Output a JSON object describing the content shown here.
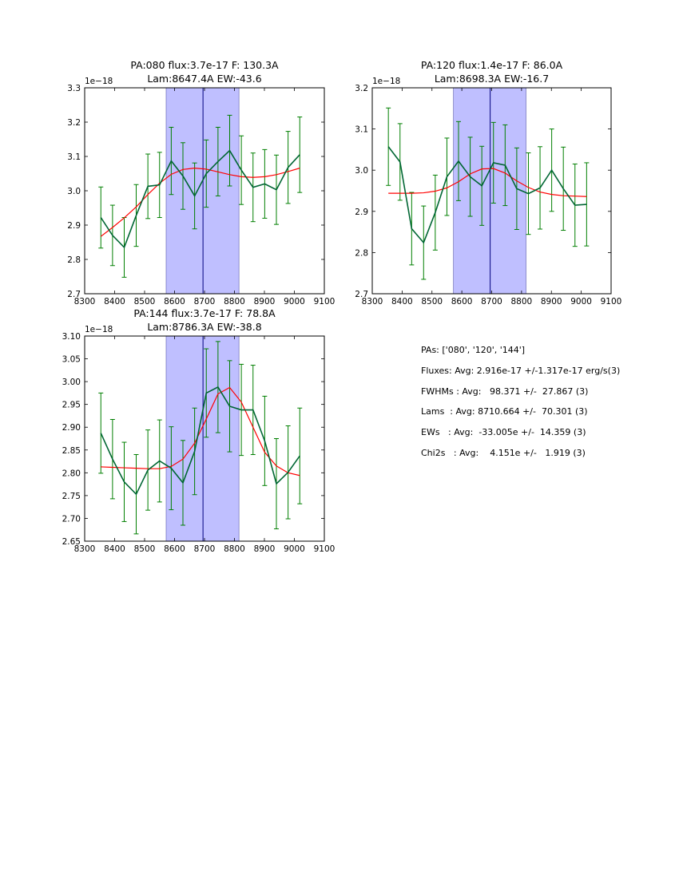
{
  "chart_data": [
    {
      "type": "line",
      "title": "PA:080 flux:3.7e-17 F: 130.3A",
      "subtitle": "Lam:8647.4A EW:-43.6",
      "xlim": [
        8300,
        9100
      ],
      "ylim": [
        2.7,
        3.3
      ],
      "xticks": [
        "8300",
        "8400",
        "8500",
        "8600",
        "8700",
        "8800",
        "8900",
        "9000",
        "9100"
      ],
      "yticks": [
        "2.7",
        "2.8",
        "2.9",
        "3.0",
        "3.1",
        "3.2",
        "3.3"
      ],
      "offset_label": "1e−18",
      "band": [
        8572,
        8815
      ],
      "center_line": 8695,
      "x": [
        8354,
        8393,
        8432,
        8472,
        8511,
        8550,
        8589,
        8628,
        8667,
        8706,
        8745,
        8784,
        8823,
        8862,
        8901,
        8940,
        8979,
        9018
      ],
      "series": [
        {
          "values": [
            2.922,
            2.87,
            2.835,
            2.928,
            3.013,
            3.017,
            3.087,
            3.043,
            2.985,
            3.05,
            3.085,
            3.117,
            3.06,
            3.01,
            3.02,
            3.003,
            3.068,
            3.105
          ]
        },
        {
          "values": [
            2.867,
            2.893,
            2.921,
            2.953,
            2.989,
            3.022,
            3.048,
            3.062,
            3.066,
            3.063,
            3.055,
            3.047,
            3.041,
            3.039,
            3.041,
            3.047,
            3.056,
            3.066
          ]
        }
      ],
      "errors": [
        0.089,
        0.088,
        0.087,
        0.09,
        0.094,
        0.095,
        0.098,
        0.097,
        0.096,
        0.098,
        0.1,
        0.103,
        0.1,
        0.1,
        0.1,
        0.101,
        0.105,
        0.11
      ],
      "colors": {
        "data": "#006633",
        "fit": "#ff0000",
        "band": "#8080ff",
        "center": "#00007f",
        "error": "#007f00"
      }
    },
    {
      "type": "line",
      "title": "PA:120 flux:1.4e-17 F: 86.0A",
      "subtitle": "Lam:8698.3A EW:-16.7",
      "xlim": [
        8300,
        9100
      ],
      "ylim": [
        2.7,
        3.2
      ],
      "xticks": [
        "8300",
        "8400",
        "8500",
        "8600",
        "8700",
        "8800",
        "8900",
        "9000",
        "9100"
      ],
      "yticks": [
        "2.7",
        "2.8",
        "2.9",
        "3.0",
        "3.1",
        "3.2"
      ],
      "offset_label": "1e−18",
      "band": [
        8572,
        8815
      ],
      "center_line": 8695,
      "x": [
        8354,
        8393,
        8432,
        8472,
        8511,
        8550,
        8589,
        8628,
        8667,
        8706,
        8745,
        8784,
        8823,
        8862,
        8901,
        8940,
        8979,
        9018
      ],
      "series": [
        {
          "values": [
            3.057,
            3.02,
            2.858,
            2.824,
            2.897,
            2.984,
            3.022,
            2.984,
            2.962,
            3.018,
            3.012,
            2.955,
            2.943,
            2.957,
            3.0,
            2.955,
            2.915,
            2.917
          ]
        },
        {
          "values": [
            2.944,
            2.944,
            2.944,
            2.945,
            2.949,
            2.957,
            2.972,
            2.991,
            3.003,
            3.004,
            2.993,
            2.974,
            2.958,
            2.947,
            2.941,
            2.938,
            2.937,
            2.936
          ]
        }
      ],
      "errors": [
        0.094,
        0.093,
        0.088,
        0.089,
        0.091,
        0.094,
        0.096,
        0.096,
        0.096,
        0.098,
        0.098,
        0.099,
        0.099,
        0.1,
        0.1,
        0.101,
        0.1,
        0.101
      ],
      "colors": {
        "data": "#006633",
        "fit": "#ff0000",
        "band": "#8080ff",
        "center": "#00007f",
        "error": "#007f00"
      }
    },
    {
      "type": "line",
      "title": "PA:144 flux:3.7e-17 F: 78.8A",
      "subtitle": "Lam:8786.3A EW:-38.8",
      "xlim": [
        8300,
        9100
      ],
      "ylim": [
        2.65,
        3.1
      ],
      "xticks": [
        "8300",
        "8400",
        "8500",
        "8600",
        "8700",
        "8800",
        "8900",
        "9000",
        "9100"
      ],
      "yticks": [
        "2.65",
        "2.70",
        "2.75",
        "2.80",
        "2.85",
        "2.90",
        "2.95",
        "3.00",
        "3.05",
        "3.10"
      ],
      "offset_label": "1e−18",
      "band": [
        8572,
        8815
      ],
      "center_line": 8695,
      "x": [
        8354,
        8393,
        8432,
        8472,
        8511,
        8550,
        8589,
        8628,
        8667,
        8706,
        8745,
        8784,
        8823,
        8862,
        8901,
        8940,
        8979,
        9018
      ],
      "series": [
        {
          "values": [
            2.887,
            2.83,
            2.78,
            2.753,
            2.806,
            2.826,
            2.81,
            2.778,
            2.847,
            2.975,
            2.988,
            2.946,
            2.938,
            2.938,
            2.87,
            2.776,
            2.801,
            2.837
          ]
        },
        {
          "values": [
            2.813,
            2.812,
            2.811,
            2.81,
            2.809,
            2.809,
            2.814,
            2.83,
            2.865,
            2.918,
            2.973,
            2.987,
            2.955,
            2.9,
            2.845,
            2.815,
            2.8,
            2.794
          ]
        }
      ],
      "errors": [
        0.088,
        0.087,
        0.087,
        0.087,
        0.088,
        0.09,
        0.091,
        0.093,
        0.095,
        0.097,
        0.1,
        0.1,
        0.1,
        0.098,
        0.098,
        0.099,
        0.102,
        0.105
      ],
      "colors": {
        "data": "#006633",
        "fit": "#ff0000",
        "band": "#8080ff",
        "center": "#00007f",
        "error": "#007f00"
      }
    }
  ],
  "summary": {
    "pas": "PAs: ['080', '120', '144']",
    "fluxes": "Fluxes: Avg: 2.916e-17 +/-1.317e-17 erg/s(3)",
    "fwhms": "FWHMs : Avg:   98.371 +/-  27.867 (3)",
    "lams": "Lams  : Avg: 8710.664 +/-  70.301 (3)",
    "ews": "EWs   : Avg:  -33.005e +/-  14.359 (3)",
    "chi2s": "Chi2s   : Avg:    4.151e +/-   1.919 (3)"
  }
}
